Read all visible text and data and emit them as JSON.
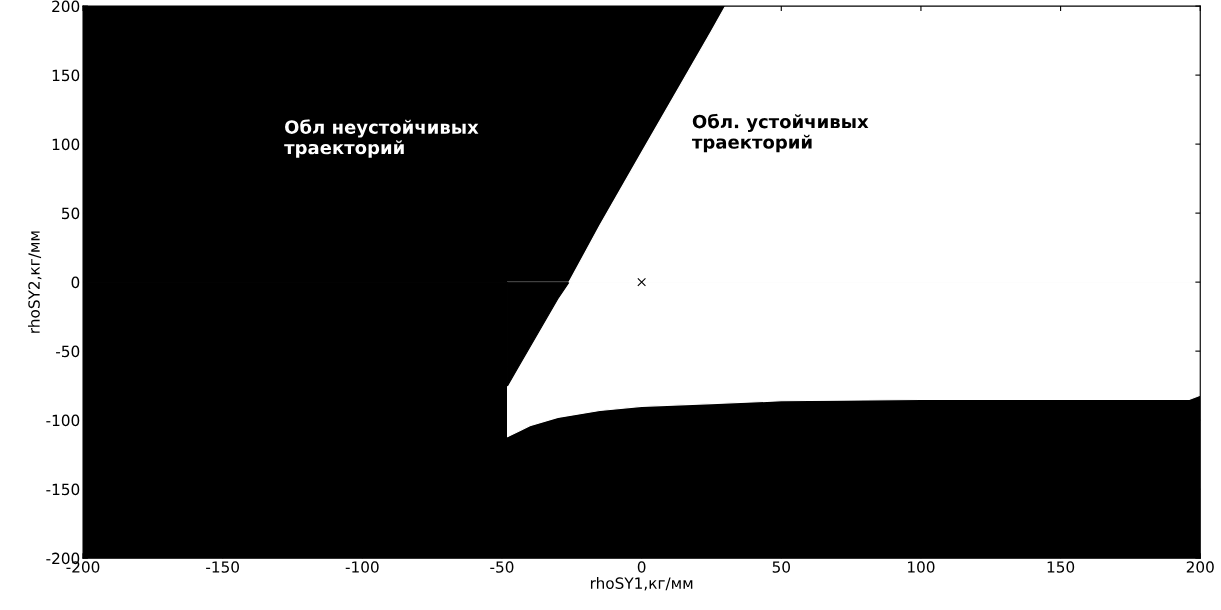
{
  "chart_data": {
    "type": "area",
    "xlabel": "rhoSY1,кг/мм",
    "ylabel": "rhoSY2,кг/мм",
    "xlim": [
      -200,
      200
    ],
    "ylim": [
      -200,
      200
    ],
    "xticks": [
      -200,
      -150,
      -100,
      -50,
      0,
      50,
      100,
      150,
      200
    ],
    "yticks": [
      -200,
      -150,
      -100,
      -50,
      0,
      50,
      100,
      150,
      200
    ],
    "grid": false,
    "series": [
      {
        "color": "#000000",
        "x": [
          -200,
          200
        ],
        "values": [
          200,
          200
        ]
      },
      {
        "color": "#000000",
        "x": [
          -200,
          200
        ],
        "values": [
          -200,
          -200
        ]
      },
      {
        "color": "#ffffff",
        "x": [
          -48,
          -44,
          -40,
          -30,
          -15,
          0,
          25,
          50,
          100,
          150,
          196,
          200
        ],
        "values": [
          -112,
          -108,
          -104,
          -98,
          -93,
          -90,
          -88,
          -86,
          -85,
          -85,
          -85,
          -82
        ]
      },
      {
        "color": "#000000",
        "x": [
          -48,
          -44,
          -40,
          -30,
          -26
        ],
        "values": [
          -75,
          -61,
          -47,
          -12,
          0
        ]
      },
      {
        "color": "#ffffff",
        "x": [
          -26,
          -15,
          0,
          25,
          30,
          50,
          100,
          150,
          200
        ],
        "values": [
          0,
          41,
          94,
          182,
          200,
          200,
          200,
          200,
          200
        ]
      },
      {
        "type": "scatter",
        "color": "#000000",
        "marker": "cross",
        "x": [
          0
        ],
        "values": [
          0
        ]
      }
    ],
    "annotations": [
      "Обл неустойчивых\nтраекторий",
      "Обл. устойчивых\nтраекторий"
    ]
  }
}
